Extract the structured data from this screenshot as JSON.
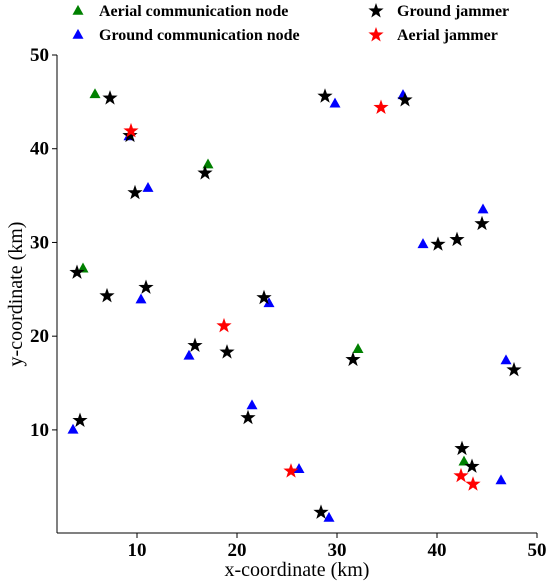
{
  "chart_data": {
    "type": "scatter",
    "title": "",
    "xlabel": "x-coordinate (km)",
    "ylabel": "y-coordinate (km)",
    "xlim": [
      2,
      50
    ],
    "ylim": [
      -1,
      50
    ],
    "xticks": [
      10,
      20,
      30,
      40,
      50
    ],
    "yticks": [
      10,
      20,
      30,
      40,
      50
    ],
    "grid": false,
    "legend_position": "top",
    "series": [
      {
        "name": "Aerial communication node",
        "marker": "triangle",
        "color": "#008000",
        "points": [
          [
            5.8,
            45.8
          ],
          [
            17.1,
            38.3
          ],
          [
            4.6,
            27.2
          ],
          [
            32.1,
            18.6
          ],
          [
            42.7,
            6.6
          ]
        ]
      },
      {
        "name": "Ground communication node",
        "marker": "triangle",
        "color": "#0000ff",
        "points": [
          [
            29.8,
            44.8
          ],
          [
            36.6,
            45.7
          ],
          [
            9.2,
            41.3
          ],
          [
            11.1,
            35.8
          ],
          [
            44.6,
            33.5
          ],
          [
            38.6,
            29.8
          ],
          [
            10.4,
            23.9
          ],
          [
            23.2,
            23.5
          ],
          [
            15.2,
            17.9
          ],
          [
            46.9,
            17.4
          ],
          [
            21.5,
            12.6
          ],
          [
            3.6,
            10.0
          ],
          [
            26.2,
            5.8
          ],
          [
            46.4,
            4.6
          ],
          [
            29.2,
            0.6
          ]
        ]
      },
      {
        "name": "Ground jammer",
        "marker": "star",
        "color": "#000000",
        "points": [
          [
            7.3,
            45.4
          ],
          [
            28.8,
            45.6
          ],
          [
            36.8,
            45.2
          ],
          [
            9.3,
            41.4
          ],
          [
            16.8,
            37.4
          ],
          [
            9.8,
            35.3
          ],
          [
            42.0,
            30.3
          ],
          [
            40.1,
            29.8
          ],
          [
            44.5,
            32.0
          ],
          [
            4.0,
            26.8
          ],
          [
            7.0,
            24.3
          ],
          [
            10.9,
            25.2
          ],
          [
            22.7,
            24.1
          ],
          [
            15.8,
            19.0
          ],
          [
            19.0,
            18.3
          ],
          [
            31.6,
            17.5
          ],
          [
            47.7,
            16.4
          ],
          [
            4.3,
            11.0
          ],
          [
            21.1,
            11.3
          ],
          [
            42.5,
            8.0
          ],
          [
            43.5,
            6.1
          ],
          [
            28.4,
            1.2
          ]
        ]
      },
      {
        "name": "Aerial jammer",
        "marker": "star",
        "color": "#ff0000",
        "points": [
          [
            9.4,
            41.9
          ],
          [
            34.4,
            44.4
          ],
          [
            18.7,
            21.1
          ],
          [
            25.4,
            5.6
          ],
          [
            42.4,
            5.1
          ],
          [
            43.6,
            4.2
          ]
        ]
      }
    ]
  }
}
